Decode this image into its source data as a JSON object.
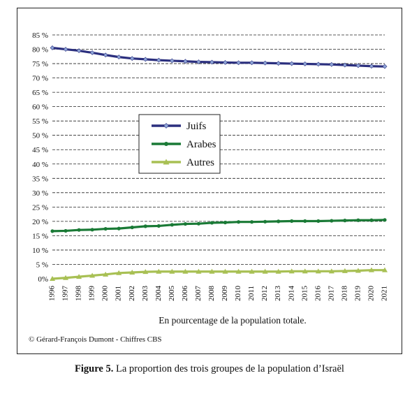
{
  "figure": {
    "caption_bold": "Figure 5.",
    "caption_text": " La proportion des trois groupes de la population d’Israël",
    "credit": "© Gérard-François  Dumont - Chiffres CBS"
  },
  "chart_data": {
    "type": "line",
    "title": "",
    "xlabel": "En pourcentage  de la population totale.",
    "ylabel": "",
    "ylim": [
      0,
      85
    ],
    "y_ticks": [
      "0%",
      "5 %",
      "10 %",
      "15 %",
      "20 %",
      "25 %",
      "30 %",
      "35 %",
      "40 %",
      "45 %",
      "50 %",
      "55 %",
      "60 %",
      "65 %",
      "70 %",
      "75 %",
      "80 %",
      "85 %"
    ],
    "y_tick_values": [
      0,
      5,
      10,
      15,
      20,
      25,
      30,
      35,
      40,
      45,
      50,
      55,
      60,
      65,
      70,
      75,
      80,
      85
    ],
    "grid": "horizontal dashed",
    "legend_position": "center-left",
    "x": [
      "1996",
      "1997",
      "1998",
      "1999",
      "2000",
      "2001",
      "2002",
      "2003",
      "2004",
      "2005",
      "2006",
      "2007",
      "2008",
      "2009",
      "2010",
      "2011",
      "2012",
      "2013",
      "2014",
      "2015",
      "2016",
      "2017",
      "2018",
      "2019",
      "2020",
      "2021"
    ],
    "series": [
      {
        "name": "Juifs",
        "color": "#2b2f7e",
        "marker": "diamond",
        "values": [
          80.5,
          80.0,
          79.5,
          78.8,
          78.0,
          77.3,
          76.8,
          76.5,
          76.2,
          76.0,
          75.8,
          75.6,
          75.5,
          75.4,
          75.3,
          75.3,
          75.2,
          75.1,
          75.0,
          74.9,
          74.8,
          74.7,
          74.5,
          74.3,
          74.1,
          74.0
        ]
      },
      {
        "name": "Arabes",
        "color": "#1a7a36",
        "marker": "circle",
        "values": [
          16.6,
          16.7,
          17.0,
          17.1,
          17.4,
          17.5,
          17.9,
          18.3,
          18.4,
          18.8,
          19.1,
          19.2,
          19.5,
          19.6,
          19.8,
          19.8,
          19.9,
          20.0,
          20.1,
          20.1,
          20.1,
          20.2,
          20.3,
          20.4,
          20.4,
          20.5
        ]
      },
      {
        "name": "Autres",
        "color": "#a8c054",
        "marker": "triangle",
        "values": [
          0.0,
          0.3,
          0.7,
          1.1,
          1.5,
          2.0,
          2.2,
          2.4,
          2.5,
          2.5,
          2.5,
          2.5,
          2.5,
          2.5,
          2.5,
          2.5,
          2.5,
          2.5,
          2.6,
          2.6,
          2.6,
          2.6,
          2.7,
          2.8,
          3.0,
          3.0
        ]
      }
    ]
  }
}
